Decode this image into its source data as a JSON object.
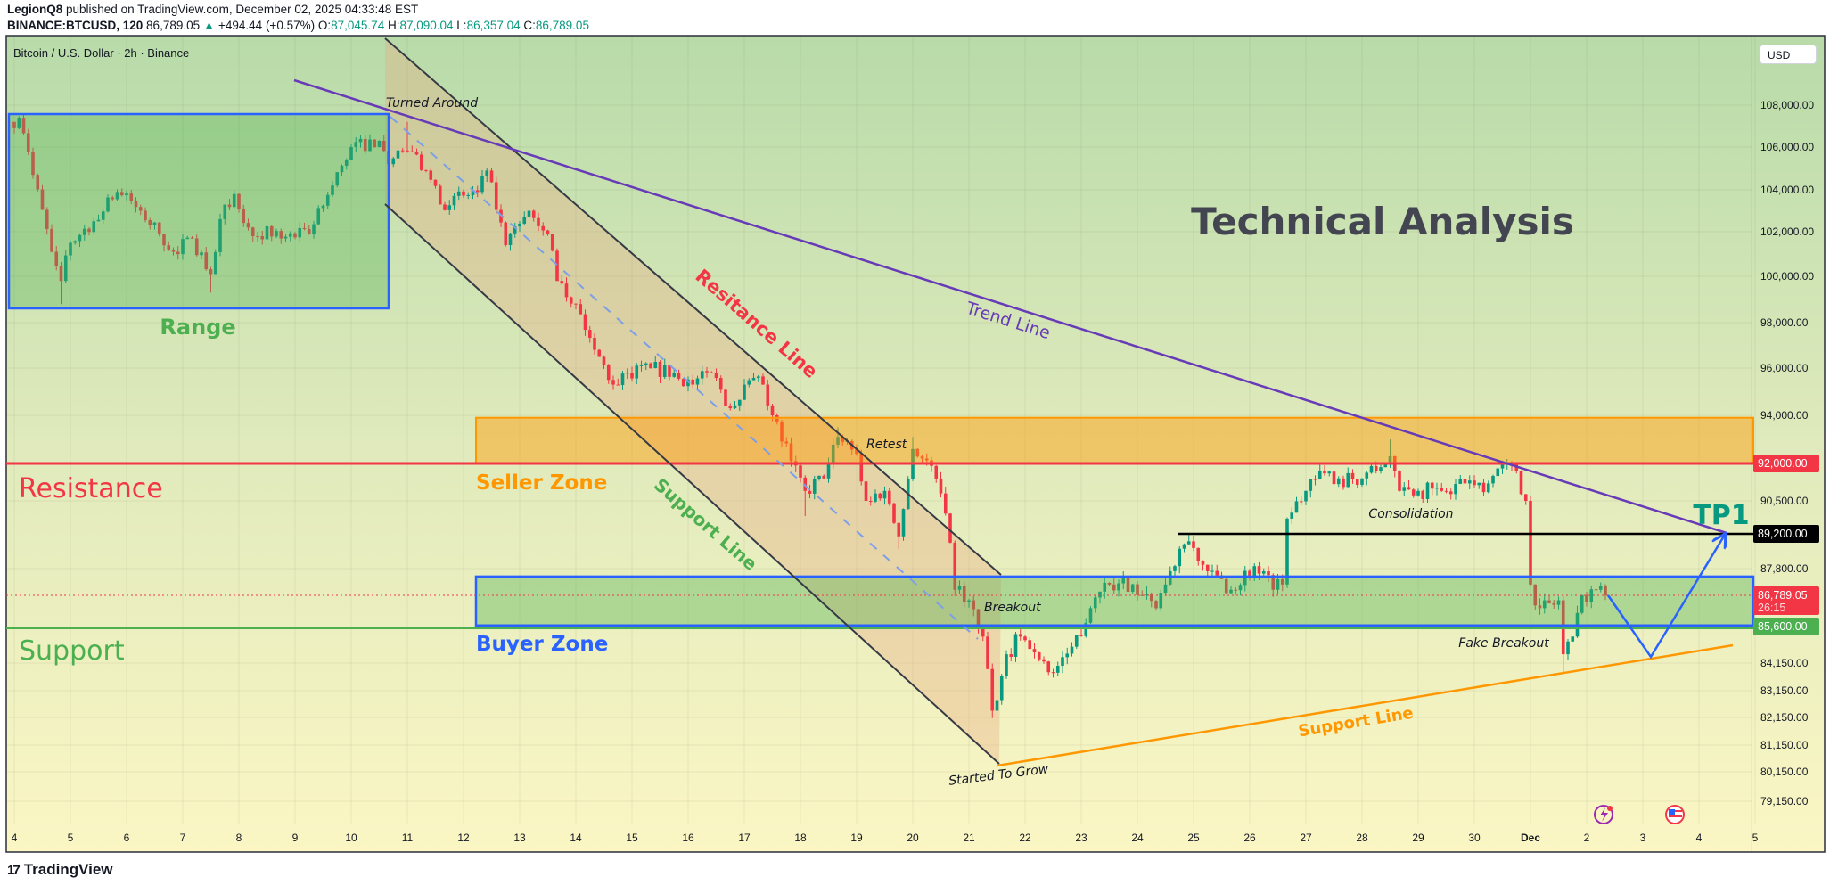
{
  "header": {
    "author": "LegionQ8",
    "published": " published on TradingView.com, December 02, 2025 04:33:48 EST",
    "symbol": "BINANCE:BTCUSD, 120",
    "last": "86,789.05",
    "change": "+494.44 (+0.57%)",
    "o_label": "O:",
    "o": "87,045.74",
    "h_label": "H:",
    "h": "87,090.04",
    "l_label": "L:",
    "l": "86,357.04",
    "c_label": "C:",
    "c": "86,789.05"
  },
  "chart_title": "Bitcoin / U.S. Dollar · 2h · Binance",
  "currency_button": "USD",
  "footer_logo": "TradingView",
  "colors": {
    "up": "#089981",
    "down": "#f23645",
    "resistance": "#f23645",
    "support": "#4caf50",
    "seller_zone": "#ff9800",
    "buyer_zone": "#2962ff",
    "trend_line": "#673ab7",
    "channel": "#363a45",
    "support_line_orange": "#ff9800",
    "tp1": "#089981"
  },
  "chart_data": {
    "type": "candlestick",
    "interval": "2h",
    "title": "Technical Analysis",
    "price_axis": {
      "ticks": [
        "108,000.00",
        "106,000.00",
        "104,000.00",
        "102,000.00",
        "100,000.00",
        "98,000.00",
        "96,000.00",
        "94,000.00",
        "90,500.00",
        "87,800.00",
        "84,150.00",
        "83,150.00",
        "82,150.00",
        "81,150.00",
        "80,150.00",
        "79,150.00"
      ],
      "badges": [
        {
          "label": "92,000.00",
          "value": 92000,
          "color": "#f23645"
        },
        {
          "label": "89,200.00",
          "value": 89200,
          "color": "#000000"
        },
        {
          "label": "86,789.05",
          "sub": "26:15",
          "value": 86789.05,
          "color": "#f23645"
        },
        {
          "label": "85,600.00",
          "value": 85600,
          "color": "#4caf50"
        }
      ]
    },
    "time_axis": {
      "ticks": [
        "4",
        "5",
        "6",
        "7",
        "8",
        "9",
        "10",
        "11",
        "12",
        "13",
        "14",
        "15",
        "16",
        "17",
        "18",
        "19",
        "20",
        "21",
        "22",
        "23",
        "24",
        "25",
        "26",
        "27",
        "28",
        "29",
        "30",
        "Dec",
        "2",
        "3",
        "4",
        "5"
      ]
    },
    "price_path": [
      {
        "t": "2025-11-04T00:00",
        "c": 106900
      },
      {
        "t": "2025-11-04T02:00",
        "c": 107400
      },
      {
        "t": "2025-11-04T08:00",
        "c": 104700
      },
      {
        "t": "2025-11-04T16:00",
        "c": 101100
      },
      {
        "t": "2025-11-04T20:00",
        "c": 99800,
        "l": 98800
      },
      {
        "t": "2025-11-05T00:00",
        "c": 101500
      },
      {
        "t": "2025-11-05T10:00",
        "c": 102500
      },
      {
        "t": "2025-11-05T20:00",
        "c": 103900
      },
      {
        "t": "2025-11-06T06:00",
        "c": 103000
      },
      {
        "t": "2025-11-06T14:00",
        "c": 101900
      },
      {
        "t": "2025-11-06T20:00",
        "c": 101100
      },
      {
        "t": "2025-11-07T04:00",
        "c": 101700
      },
      {
        "t": "2025-11-07T12:00",
        "c": 100100,
        "l": 99300
      },
      {
        "t": "2025-11-07T16:00",
        "c": 102600
      },
      {
        "t": "2025-11-07T22:00",
        "c": 103800
      },
      {
        "t": "2025-11-08T04:00",
        "c": 102200
      },
      {
        "t": "2025-11-08T18:00",
        "c": 101700
      },
      {
        "t": "2025-11-09T06:00",
        "c": 101900
      },
      {
        "t": "2025-11-09T16:00",
        "c": 104200
      },
      {
        "t": "2025-11-10T00:00",
        "c": 106000
      },
      {
        "t": "2025-11-10T12:00",
        "c": 106300
      },
      {
        "t": "2025-11-10T16:00",
        "c": 105200
      },
      {
        "t": "2025-11-11T00:00",
        "c": 105800,
        "h": 107200
      },
      {
        "t": "2025-11-11T08:00",
        "c": 104900
      },
      {
        "t": "2025-11-11T14:00",
        "c": 103300
      },
      {
        "t": "2025-11-12T06:00",
        "c": 103900
      },
      {
        "t": "2025-11-12T10:00",
        "c": 104900
      },
      {
        "t": "2025-11-12T18:00",
        "c": 101400
      },
      {
        "t": "2025-11-13T04:00",
        "c": 103000
      },
      {
        "t": "2025-11-13T12:00",
        "c": 101900
      },
      {
        "t": "2025-11-13T16:00",
        "c": 99800
      },
      {
        "t": "2025-11-14T00:00",
        "c": 98800
      },
      {
        "t": "2025-11-14T08:00",
        "c": 96800
      },
      {
        "t": "2025-11-14T16:00",
        "c": 95300
      },
      {
        "t": "2025-11-14T22:00",
        "c": 95800
      },
      {
        "t": "2025-11-15T08:00",
        "c": 96000
      },
      {
        "t": "2025-11-15T18:00",
        "c": 95800
      },
      {
        "t": "2025-11-16T02:00",
        "c": 95300
      },
      {
        "t": "2025-11-16T10:00",
        "c": 95800
      },
      {
        "t": "2025-11-16T18:00",
        "c": 94300
      },
      {
        "t": "2025-11-17T00:00",
        "c": 95300
      },
      {
        "t": "2025-11-17T08:00",
        "c": 95300
      },
      {
        "t": "2025-11-17T12:00",
        "c": 94000
      },
      {
        "t": "2025-11-17T20:00",
        "c": 92100
      },
      {
        "t": "2025-11-18T02:00",
        "c": 90900,
        "l": 89900
      },
      {
        "t": "2025-11-18T10:00",
        "c": 91400
      },
      {
        "t": "2025-11-18T16:00",
        "c": 93100,
        "h": 93500
      },
      {
        "t": "2025-11-19T00:00",
        "c": 92400
      },
      {
        "t": "2025-11-19T04:00",
        "c": 90500
      },
      {
        "t": "2025-11-19T12:00",
        "c": 90900
      },
      {
        "t": "2025-11-19T18:00",
        "c": 89100,
        "l": 88600
      },
      {
        "t": "2025-11-20T00:00",
        "c": 92600,
        "h": 93100
      },
      {
        "t": "2025-11-20T08:00",
        "c": 91900
      },
      {
        "t": "2025-11-20T14:00",
        "c": 90000
      },
      {
        "t": "2025-11-20T18:00",
        "c": 87000
      },
      {
        "t": "2025-11-21T00:00",
        "c": 86600
      },
      {
        "t": "2025-11-21T06:00",
        "c": 85200
      },
      {
        "t": "2025-11-21T10:00",
        "c": 82400
      },
      {
        "t": "2025-11-21T12:00",
        "c": 82800,
        "l": 80600
      },
      {
        "t": "2025-11-21T16:00",
        "c": 84500
      },
      {
        "t": "2025-11-21T22:00",
        "c": 85200
      },
      {
        "t": "2025-11-22T06:00",
        "c": 84300
      },
      {
        "t": "2025-11-22T12:00",
        "c": 83800
      },
      {
        "t": "2025-11-22T20:00",
        "c": 84800
      },
      {
        "t": "2025-11-23T04:00",
        "c": 86300
      },
      {
        "t": "2025-11-23T12:00",
        "c": 87200
      },
      {
        "t": "2025-11-23T18:00",
        "c": 87500
      },
      {
        "t": "2025-11-24T00:00",
        "c": 86800
      },
      {
        "t": "2025-11-24T08:00",
        "c": 86300
      },
      {
        "t": "2025-11-24T12:00",
        "c": 87200
      },
      {
        "t": "2025-11-24T18:00",
        "c": 88600
      },
      {
        "t": "2025-11-24T22:00",
        "c": 88900,
        "h": 89200
      },
      {
        "t": "2025-11-25T06:00",
        "c": 87700
      },
      {
        "t": "2025-11-25T16:00",
        "c": 87000
      },
      {
        "t": "2025-11-26T02:00",
        "c": 87900
      },
      {
        "t": "2025-11-26T10:00",
        "c": 87000
      },
      {
        "t": "2025-11-26T14:00",
        "c": 87200
      },
      {
        "t": "2025-11-26T16:00",
        "c": 89800
      },
      {
        "t": "2025-11-27T00:00",
        "c": 90900
      },
      {
        "t": "2025-11-27T08:00",
        "c": 91600
      },
      {
        "t": "2025-11-27T14:00",
        "c": 91400
      },
      {
        "t": "2025-11-28T00:00",
        "c": 91400
      },
      {
        "t": "2025-11-28T08:00",
        "c": 91850
      },
      {
        "t": "2025-11-28T12:00",
        "c": 92300,
        "h": 93000
      },
      {
        "t": "2025-11-28T16:00",
        "c": 90900
      },
      {
        "t": "2025-11-29T00:00",
        "c": 90900
      },
      {
        "t": "2025-11-29T10:00",
        "c": 90900
      },
      {
        "t": "2025-11-29T20:00",
        "c": 91200
      },
      {
        "t": "2025-11-30T06:00",
        "c": 91200
      },
      {
        "t": "2025-11-30T10:00",
        "c": 91800
      },
      {
        "t": "2025-11-30T18:00",
        "c": 91700
      },
      {
        "t": "2025-11-30T22:00",
        "c": 90500
      },
      {
        "t": "2025-12-01T00:00",
        "c": 87200
      },
      {
        "t": "2025-12-01T04:00",
        "c": 86300
      },
      {
        "t": "2025-12-01T12:00",
        "c": 86600
      },
      {
        "t": "2025-12-01T14:00",
        "c": 84500,
        "l": 83800
      },
      {
        "t": "2025-12-01T18:00",
        "c": 85200
      },
      {
        "t": "2025-12-01T22:00",
        "c": 86800
      },
      {
        "t": "2025-12-02T04:00",
        "c": 87000
      },
      {
        "t": "2025-12-02T08:00",
        "c": 86789.05
      }
    ],
    "levels": {
      "resistance": 92000,
      "support": 85600,
      "tp1": 89200,
      "seller_zone": [
        92000,
        93900
      ],
      "buyer_zone": [
        85600,
        87500
      ]
    },
    "labels": {
      "title": "Technical Analysis",
      "range": "Range",
      "turned_around": "Turned Around",
      "resistance": "Resistance",
      "support": "Support",
      "seller_zone": "Seller Zone",
      "buyer_zone": "Buyer Zone",
      "resistance_line": "Resitance Line",
      "support_line_channel": "Support Line",
      "trend_line": "Trend Line",
      "retest": "Retest",
      "breakout": "Breakout",
      "started_to_grow": "Started To Grow",
      "consolidation": "Consolidation",
      "fake_breakout": "Fake Breakout",
      "support_line": "Support Line",
      "tp1": "TP1"
    },
    "grid": true
  },
  "icons": {
    "events": "lightning-event-icon",
    "economic": "us-flag-icon"
  }
}
